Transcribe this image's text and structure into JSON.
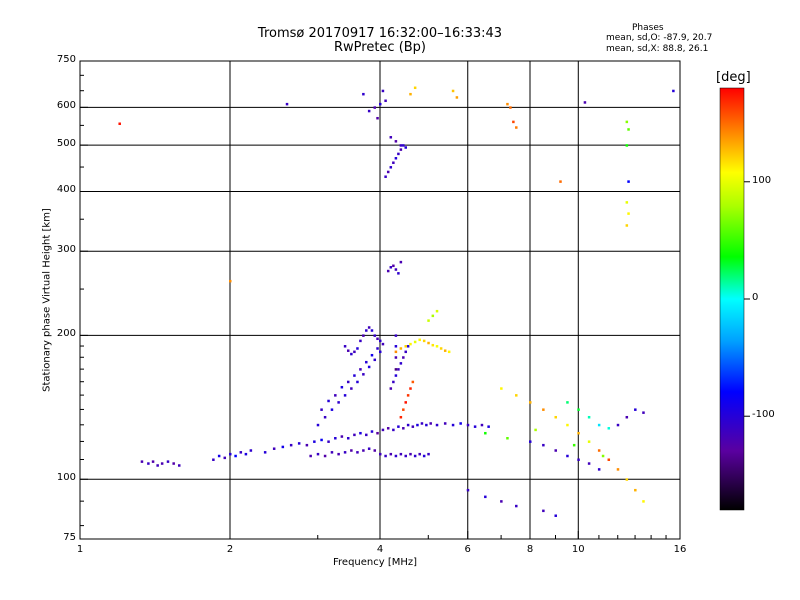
{
  "chart_data": {
    "type": "scatter",
    "title": "Tromsø 20170917 16:32:00–16:33:43",
    "subtitle": "RwPretec (Bp)",
    "stats": {
      "heading": "Phases",
      "o_mode": "mean, sd,O: -87.9, 20.7",
      "x_mode": "mean, sd,X:  88.8, 26.1"
    },
    "xlabel": "Frequency [MHz]",
    "ylabel": "Stationary phase Virtual Height [km]",
    "x_scale": "log",
    "y_scale": "log",
    "xlim": [
      1,
      16
    ],
    "ylim": [
      75,
      750
    ],
    "grid": true,
    "x_ticks": [
      {
        "value": 1,
        "label": "1"
      },
      {
        "value": 2,
        "label": "2"
      },
      {
        "value": 4,
        "label": "4"
      },
      {
        "value": 6,
        "label": "6"
      },
      {
        "value": 8,
        "label": "8"
      },
      {
        "value": 10,
        "label": "10"
      },
      {
        "value": 16,
        "label": "16"
      }
    ],
    "y_ticks": [
      {
        "value": 75,
        "label": "75"
      },
      {
        "value": 100,
        "label": "100"
      },
      {
        "value": 200,
        "label": "200"
      },
      {
        "value": 300,
        "label": "300"
      },
      {
        "value": 400,
        "label": "400"
      },
      {
        "value": 500,
        "label": "500"
      },
      {
        "value": 600,
        "label": "600"
      },
      {
        "value": 750,
        "label": "750"
      }
    ],
    "colorbar": {
      "unit_label": "[deg]",
      "range": [
        -180,
        180
      ],
      "ticks": [
        {
          "value": 100,
          "label": "100"
        },
        {
          "value": 0,
          "label": "0"
        },
        {
          "value": -100,
          "label": "-100"
        }
      ]
    },
    "series": [
      {
        "points": [
          [
            1.33,
            109,
            -120
          ],
          [
            1.37,
            108,
            -110
          ],
          [
            1.4,
            109,
            -125
          ],
          [
            1.43,
            107,
            -115
          ],
          [
            1.46,
            108,
            -120
          ],
          [
            1.5,
            109,
            -110
          ],
          [
            1.54,
            108,
            -125
          ],
          [
            1.58,
            107,
            -115
          ],
          [
            1.85,
            110,
            -110
          ],
          [
            1.9,
            112,
            -90
          ],
          [
            1.95,
            111,
            -115
          ],
          [
            2.0,
            113,
            -100
          ],
          [
            2.05,
            112,
            -80
          ],
          [
            2.1,
            114,
            -110
          ],
          [
            2.15,
            113,
            -95
          ],
          [
            2.2,
            115,
            -105
          ],
          [
            2.35,
            114,
            -100
          ],
          [
            2.45,
            116,
            -115
          ],
          [
            2.55,
            117,
            -90
          ],
          [
            2.65,
            118,
            -110
          ],
          [
            2.75,
            119,
            -100
          ],
          [
            2.85,
            118,
            -120
          ],
          [
            2.95,
            120,
            -95
          ],
          [
            3.05,
            121,
            -85
          ],
          [
            3.15,
            120,
            -110
          ],
          [
            3.25,
            122,
            -100
          ],
          [
            3.35,
            123,
            -120
          ],
          [
            3.45,
            122,
            -105
          ],
          [
            3.55,
            124,
            -115
          ],
          [
            3.65,
            125,
            -95
          ],
          [
            3.75,
            124,
            -110
          ],
          [
            3.85,
            126,
            -100
          ],
          [
            3.95,
            125,
            -130
          ],
          [
            4.05,
            127,
            -115
          ],
          [
            4.15,
            128,
            -125
          ],
          [
            4.25,
            127,
            -110
          ],
          [
            4.35,
            129,
            -100
          ],
          [
            4.45,
            128,
            -120
          ],
          [
            4.55,
            130,
            -105
          ],
          [
            4.65,
            129,
            -115
          ],
          [
            4.75,
            130,
            -95
          ],
          [
            4.85,
            131,
            -110
          ],
          [
            4.95,
            130,
            -100
          ],
          [
            5.05,
            131,
            -120
          ],
          [
            5.2,
            130,
            -105
          ],
          [
            5.4,
            131,
            -115
          ],
          [
            5.6,
            130,
            -100
          ],
          [
            5.8,
            131,
            -90
          ],
          [
            6.0,
            130,
            -110
          ],
          [
            6.2,
            129,
            -100
          ],
          [
            6.4,
            130,
            -115
          ],
          [
            6.6,
            129,
            -95
          ],
          [
            2.9,
            112,
            -120
          ],
          [
            3.0,
            113,
            -110
          ],
          [
            3.1,
            112,
            -125
          ],
          [
            3.2,
            114,
            -115
          ],
          [
            3.3,
            113,
            -120
          ],
          [
            3.4,
            114,
            -110
          ],
          [
            3.5,
            115,
            -125
          ],
          [
            3.6,
            114,
            -115
          ],
          [
            3.7,
            115,
            -120
          ],
          [
            3.8,
            116,
            -110
          ],
          [
            3.9,
            115,
            -125
          ],
          [
            4.0,
            113,
            -115
          ],
          [
            4.1,
            112,
            -110
          ],
          [
            4.2,
            113,
            -120
          ],
          [
            4.3,
            112,
            -105
          ],
          [
            4.4,
            113,
            -115
          ],
          [
            4.5,
            112,
            -110
          ],
          [
            4.6,
            113,
            -120
          ],
          [
            4.7,
            112,
            -105
          ],
          [
            4.8,
            113,
            -115
          ],
          [
            4.9,
            112,
            -100
          ],
          [
            5.0,
            113,
            -110
          ],
          [
            3.0,
            130,
            -100
          ],
          [
            3.1,
            135,
            -110
          ],
          [
            3.2,
            140,
            -95
          ],
          [
            3.3,
            145,
            -105
          ],
          [
            3.4,
            150,
            -100
          ],
          [
            3.5,
            155,
            -115
          ],
          [
            3.6,
            160,
            -100
          ],
          [
            3.7,
            166,
            -110
          ],
          [
            3.8,
            172,
            -95
          ],
          [
            3.9,
            178,
            -105
          ],
          [
            4.0,
            185,
            -100
          ],
          [
            3.05,
            140,
            -110
          ],
          [
            3.15,
            146,
            -100
          ],
          [
            3.25,
            150,
            -115
          ],
          [
            3.35,
            156,
            -95
          ],
          [
            3.45,
            160,
            -110
          ],
          [
            3.55,
            165,
            -100
          ],
          [
            3.65,
            170,
            -115
          ],
          [
            3.75,
            176,
            -100
          ],
          [
            3.85,
            182,
            -90
          ],
          [
            3.95,
            188,
            -105
          ],
          [
            3.4,
            190,
            -110
          ],
          [
            3.45,
            186,
            -120
          ],
          [
            3.5,
            183,
            -105
          ],
          [
            3.55,
            185,
            -115
          ],
          [
            3.6,
            188,
            -100
          ],
          [
            3.65,
            195,
            -110
          ],
          [
            3.7,
            200,
            -120
          ],
          [
            3.75,
            205,
            -105
          ],
          [
            3.8,
            208,
            -115
          ],
          [
            3.85,
            205,
            -100
          ],
          [
            3.9,
            200,
            -110
          ],
          [
            3.95,
            197,
            -120
          ],
          [
            4.0,
            195,
            -105
          ],
          [
            4.05,
            192,
            -115
          ],
          [
            4.2,
            155,
            -120
          ],
          [
            4.25,
            160,
            -110
          ],
          [
            4.3,
            165,
            -100
          ],
          [
            4.35,
            170,
            -115
          ],
          [
            4.4,
            175,
            -105
          ],
          [
            4.45,
            180,
            -120
          ],
          [
            4.5,
            185,
            -110
          ],
          [
            4.55,
            190,
            -100
          ],
          [
            4.3,
            170,
            -140
          ],
          [
            4.3,
            180,
            -120
          ],
          [
            4.3,
            190,
            -100
          ],
          [
            4.3,
            200,
            -110
          ],
          [
            4.15,
            273,
            -120
          ],
          [
            4.2,
            278,
            -110
          ],
          [
            4.25,
            280,
            -125
          ],
          [
            4.3,
            275,
            -115
          ],
          [
            4.35,
            270,
            -105
          ],
          [
            4.4,
            285,
            -120
          ],
          [
            4.1,
            430,
            -110
          ],
          [
            4.15,
            440,
            -120
          ],
          [
            4.2,
            450,
            -105
          ],
          [
            4.25,
            460,
            -115
          ],
          [
            4.3,
            470,
            -100
          ],
          [
            4.35,
            480,
            -110
          ],
          [
            4.4,
            490,
            -120
          ],
          [
            4.45,
            500,
            -105
          ],
          [
            4.2,
            520,
            -115
          ],
          [
            4.3,
            510,
            -125
          ],
          [
            4.4,
            500,
            -110
          ],
          [
            4.5,
            495,
            -100
          ],
          [
            3.8,
            590,
            -110
          ],
          [
            3.9,
            600,
            -120
          ],
          [
            4.0,
            610,
            -100
          ],
          [
            4.1,
            620,
            -115
          ],
          [
            3.7,
            640,
            -105
          ],
          [
            4.05,
            650,
            -110
          ],
          [
            3.95,
            570,
            -125
          ],
          [
            2.6,
            610,
            -110
          ],
          [
            10.3,
            615,
            -120
          ],
          [
            15.5,
            650,
            -100
          ],
          [
            4.3,
            185,
            140
          ],
          [
            4.4,
            188,
            130
          ],
          [
            4.5,
            190,
            120
          ],
          [
            4.6,
            192,
            110
          ],
          [
            4.7,
            194,
            100
          ],
          [
            4.8,
            196,
            110
          ],
          [
            4.9,
            195,
            120
          ],
          [
            5.0,
            193,
            130
          ],
          [
            5.1,
            191,
            115
          ],
          [
            5.2,
            190,
            105
          ],
          [
            5.3,
            188,
            120
          ],
          [
            5.4,
            186,
            130
          ],
          [
            5.5,
            185,
            110
          ],
          [
            5.0,
            215,
            90
          ],
          [
            5.1,
            220,
            80
          ],
          [
            5.2,
            225,
            95
          ],
          [
            4.4,
            135,
            170
          ],
          [
            4.45,
            140,
            160
          ],
          [
            4.5,
            145,
            175
          ],
          [
            4.55,
            150,
            165
          ],
          [
            4.6,
            155,
            170
          ],
          [
            4.65,
            160,
            155
          ],
          [
            4.6,
            640,
            130
          ],
          [
            4.7,
            660,
            120
          ],
          [
            5.6,
            650,
            125
          ],
          [
            5.7,
            630,
            135
          ],
          [
            7.2,
            610,
            140
          ],
          [
            7.3,
            600,
            150
          ],
          [
            7.4,
            560,
            160
          ],
          [
            7.5,
            545,
            145
          ],
          [
            12.5,
            560,
            70
          ],
          [
            12.6,
            540,
            60
          ],
          [
            12.5,
            500,
            40
          ],
          [
            12.6,
            420,
            -80
          ],
          [
            12.5,
            380,
            100
          ],
          [
            12.6,
            360,
            110
          ],
          [
            12.5,
            340,
            120
          ],
          [
            9.2,
            420,
            150
          ],
          [
            1.2,
            555,
            175
          ],
          [
            2.0,
            260,
            140
          ],
          [
            7.0,
            155,
            110
          ],
          [
            7.5,
            150,
            120
          ],
          [
            8.0,
            145,
            130
          ],
          [
            8.5,
            140,
            140
          ],
          [
            9.0,
            135,
            120
          ],
          [
            9.5,
            130,
            110
          ],
          [
            10.0,
            125,
            130
          ],
          [
            10.5,
            120,
            100
          ],
          [
            11.0,
            115,
            150
          ],
          [
            11.5,
            110,
            160
          ],
          [
            12.0,
            105,
            140
          ],
          [
            12.5,
            100,
            120
          ],
          [
            13.0,
            95,
            130
          ],
          [
            13.5,
            90,
            110
          ],
          [
            8.0,
            120,
            -100
          ],
          [
            8.5,
            118,
            -110
          ],
          [
            9.0,
            115,
            -120
          ],
          [
            9.5,
            112,
            -100
          ],
          [
            10.0,
            110,
            -110
          ],
          [
            10.5,
            108,
            -115
          ],
          [
            11.0,
            105,
            -105
          ],
          [
            6.0,
            95,
            -110
          ],
          [
            6.5,
            92,
            -100
          ],
          [
            7.0,
            90,
            -120
          ],
          [
            7.5,
            88,
            -110
          ],
          [
            8.5,
            86,
            -115
          ],
          [
            9.0,
            84,
            -100
          ],
          [
            12.0,
            130,
            -110
          ],
          [
            12.5,
            135,
            -120
          ],
          [
            13.0,
            140,
            -100
          ],
          [
            13.5,
            138,
            -115
          ],
          [
            9.5,
            145,
            20
          ],
          [
            10.0,
            140,
            30
          ],
          [
            10.5,
            135,
            10
          ],
          [
            11.0,
            130,
            -10
          ],
          [
            11.5,
            128,
            5
          ],
          [
            6.5,
            125,
            40
          ],
          [
            7.2,
            122,
            60
          ],
          [
            8.2,
            127,
            80
          ],
          [
            9.8,
            118,
            50
          ],
          [
            11.2,
            112,
            70
          ]
        ]
      }
    ]
  }
}
